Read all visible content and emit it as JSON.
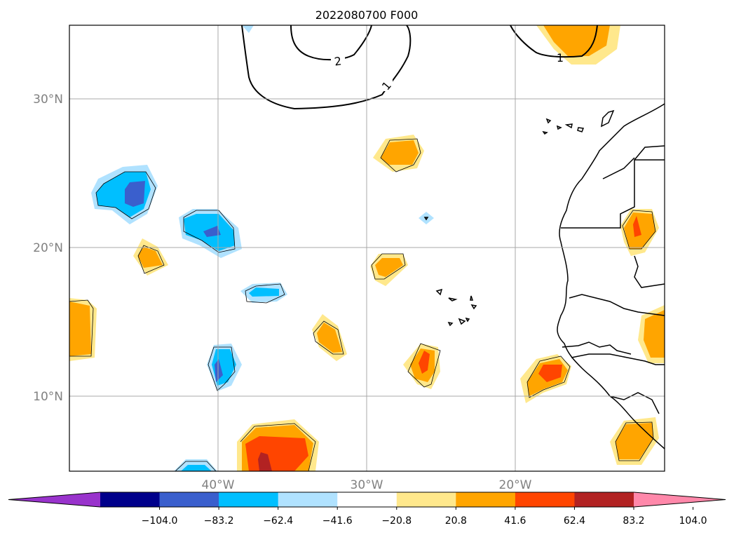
{
  "title": "2022080700 F000",
  "lat_labels": [
    "30°N",
    "20°N",
    "10°N"
  ],
  "lon_labels": [
    "40°W",
    "30°W",
    "20°W"
  ],
  "contour_labels": [
    "2",
    "1",
    "1"
  ],
  "colorbar": {
    "tick_labels": [
      "−104.0",
      "−83.2",
      "−62.4",
      "−41.6",
      "−20.8",
      "20.8",
      "41.6",
      "62.4",
      "83.2",
      "104.0"
    ],
    "colors": [
      "#9933cc",
      "#00008b",
      "#3a5fcd",
      "#00bfff",
      "#b0e2ff",
      "#ffffff",
      "#ffe88c",
      "#ffa500",
      "#ff4500",
      "#b22222",
      "#ff88aa"
    ]
  }
}
